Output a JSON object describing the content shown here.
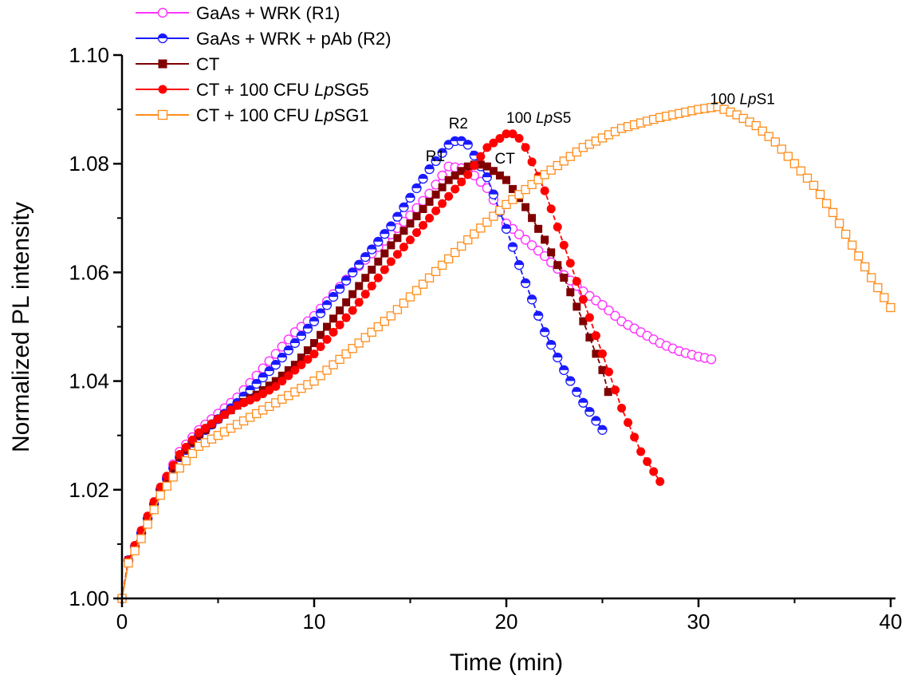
{
  "chart_data": {
    "type": "line",
    "title": "",
    "xlabel": "Time (min)",
    "ylabel": "Normalized PL intensity",
    "xlim": [
      0,
      40
    ],
    "ylim": [
      1.0,
      1.1
    ],
    "xticks": [
      0,
      10,
      20,
      30,
      40
    ],
    "xtick_labels": [
      "0",
      "10",
      "20",
      "30",
      "40"
    ],
    "yticks": [
      1.0,
      1.02,
      1.04,
      1.06,
      1.08,
      1.1
    ],
    "ytick_labels": [
      "1.00",
      "1.02",
      "1.04",
      "1.06",
      "1.08",
      "1.10"
    ],
    "grid": false,
    "legend_position": "top-left",
    "sample_interval_min": 0.3333,
    "series": [
      {
        "name": "GaAs + WRK (R1)",
        "name_parts": [
          "GaAs + WRK (R1)"
        ],
        "color": "#ff33ff",
        "marker": "open-circle",
        "points": [
          [
            0,
            1.0
          ],
          [
            0.33,
            1.007
          ],
          [
            1,
            1.012
          ],
          [
            1.5,
            1.016
          ],
          [
            2,
            1.02
          ],
          [
            2.5,
            1.0235
          ],
          [
            3,
            1.027
          ],
          [
            4,
            1.031
          ],
          [
            5,
            1.034
          ],
          [
            6,
            1.037
          ],
          [
            7,
            1.041
          ],
          [
            8,
            1.045
          ],
          [
            9,
            1.049
          ],
          [
            10,
            1.052
          ],
          [
            12,
            1.06
          ],
          [
            14,
            1.067
          ],
          [
            15,
            1.0705
          ],
          [
            16,
            1.0745
          ],
          [
            17,
            1.0795
          ],
          [
            18,
            1.079
          ],
          [
            19,
            1.0755
          ],
          [
            20,
            1.069
          ],
          [
            21,
            1.066
          ],
          [
            22,
            1.063
          ],
          [
            23,
            1.0595
          ],
          [
            24,
            1.0565
          ],
          [
            25,
            1.054
          ],
          [
            26,
            1.051
          ],
          [
            27,
            1.049
          ],
          [
            28,
            1.047
          ],
          [
            29,
            1.0455
          ],
          [
            30,
            1.0445
          ],
          [
            30.7,
            1.044
          ]
        ]
      },
      {
        "name": "GaAs + WRK + pAb (R2)",
        "name_parts": [
          "GaAs + WRK + pAb (R2)"
        ],
        "color": "#1a1aff",
        "marker": "half-circle",
        "points": [
          [
            0,
            1.0
          ],
          [
            0.33,
            1.007
          ],
          [
            1,
            1.012
          ],
          [
            1.5,
            1.016
          ],
          [
            2,
            1.02
          ],
          [
            2.5,
            1.023
          ],
          [
            3,
            1.026
          ],
          [
            4,
            1.03
          ],
          [
            5,
            1.033
          ],
          [
            6,
            1.036
          ],
          [
            7,
            1.0395
          ],
          [
            8,
            1.043
          ],
          [
            9,
            1.047
          ],
          [
            10,
            1.051
          ],
          [
            12,
            1.06
          ],
          [
            14,
            1.0685
          ],
          [
            16,
            1.079
          ],
          [
            17,
            1.0835
          ],
          [
            17.5,
            1.0845
          ],
          [
            18,
            1.0835
          ],
          [
            19,
            1.0775
          ],
          [
            20,
            1.068
          ],
          [
            21,
            1.058
          ],
          [
            22,
            1.049
          ],
          [
            23,
            1.042
          ],
          [
            24,
            1.036
          ],
          [
            25,
            1.031
          ]
        ]
      },
      {
        "name": "CT",
        "name_parts": [
          "CT"
        ],
        "color": "#800000",
        "marker": "filled-square",
        "points": [
          [
            0,
            1.0
          ],
          [
            0.33,
            1.007
          ],
          [
            1,
            1.012
          ],
          [
            1.5,
            1.016
          ],
          [
            2,
            1.02
          ],
          [
            2.5,
            1.023
          ],
          [
            3,
            1.026
          ],
          [
            4,
            1.03
          ],
          [
            5,
            1.033
          ],
          [
            6,
            1.0355
          ],
          [
            7,
            1.0375
          ],
          [
            8,
            1.04
          ],
          [
            9,
            1.043
          ],
          [
            10,
            1.047
          ],
          [
            12,
            1.056
          ],
          [
            14,
            1.065
          ],
          [
            16,
            1.073
          ],
          [
            17,
            1.077
          ],
          [
            18,
            1.0795
          ],
          [
            18.5,
            1.08
          ],
          [
            19,
            1.0795
          ],
          [
            20,
            1.077
          ],
          [
            21,
            1.072
          ],
          [
            22,
            1.066
          ],
          [
            23,
            1.059
          ],
          [
            24,
            1.051
          ],
          [
            25,
            1.042
          ],
          [
            25.3,
            1.038
          ]
        ]
      },
      {
        "name": "CT + 100 CFU LpSG5",
        "name_parts": [
          "CT + 100 CFU ",
          "Lp",
          "SG5"
        ],
        "color": "#ff0000",
        "marker": "filled-circle",
        "points": [
          [
            0,
            1.0
          ],
          [
            0.33,
            1.007
          ],
          [
            1,
            1.0125
          ],
          [
            1.5,
            1.0165
          ],
          [
            2,
            1.0205
          ],
          [
            2.5,
            1.0235
          ],
          [
            3,
            1.0265
          ],
          [
            4,
            1.0305
          ],
          [
            5,
            1.033
          ],
          [
            6,
            1.0355
          ],
          [
            7,
            1.037
          ],
          [
            8,
            1.039
          ],
          [
            9,
            1.042
          ],
          [
            10,
            1.045
          ],
          [
            12,
            1.053
          ],
          [
            14,
            1.062
          ],
          [
            16,
            1.07
          ],
          [
            17,
            1.074
          ],
          [
            18,
            1.078
          ],
          [
            19,
            1.083
          ],
          [
            20,
            1.0855
          ],
          [
            20.5,
            1.0855
          ],
          [
            21,
            1.083
          ],
          [
            22,
            1.075
          ],
          [
            23,
            1.065
          ],
          [
            24,
            1.055
          ],
          [
            25,
            1.045
          ],
          [
            26,
            1.035
          ],
          [
            27,
            1.027
          ],
          [
            28,
            1.0215
          ]
        ]
      },
      {
        "name": "CT + 100 CFU LpSG1",
        "name_parts": [
          "CT + 100 CFU ",
          "Lp",
          "SG1"
        ],
        "color": "#ff8c1a",
        "marker": "open-square",
        "points": [
          [
            0,
            1.0
          ],
          [
            0.33,
            1.0065
          ],
          [
            1,
            1.011
          ],
          [
            2,
            1.019
          ],
          [
            3,
            1.024
          ],
          [
            4,
            1.028
          ],
          [
            6,
            1.032
          ],
          [
            8,
            1.036
          ],
          [
            10,
            1.04
          ],
          [
            12,
            1.046
          ],
          [
            14,
            1.052
          ],
          [
            16,
            1.059
          ],
          [
            18,
            1.066
          ],
          [
            20,
            1.0725
          ],
          [
            22,
            1.078
          ],
          [
            24,
            1.083
          ],
          [
            26,
            1.0865
          ],
          [
            28,
            1.0885
          ],
          [
            30,
            1.09
          ],
          [
            31,
            1.0905
          ],
          [
            32,
            1.089
          ],
          [
            33,
            1.087
          ],
          [
            34,
            1.084
          ],
          [
            35,
            1.08
          ],
          [
            36,
            1.076
          ],
          [
            37,
            1.071
          ],
          [
            38,
            1.065
          ],
          [
            39,
            1.059
          ],
          [
            40,
            1.0535
          ]
        ]
      }
    ],
    "annotations": [
      {
        "parts": [
          "R1"
        ],
        "x": 15.8,
        "y": 1.0805
      },
      {
        "parts": [
          "R2"
        ],
        "x": 17.0,
        "y": 1.0865
      },
      {
        "parts": [
          "CT"
        ],
        "x": 19.4,
        "y": 1.08
      },
      {
        "parts": [
          "100 ",
          "Lp",
          "S5"
        ],
        "x": 20.0,
        "y": 1.0875
      },
      {
        "parts": [
          "100 ",
          "Lp",
          "S1"
        ],
        "x": 30.6,
        "y": 1.091
      }
    ]
  }
}
